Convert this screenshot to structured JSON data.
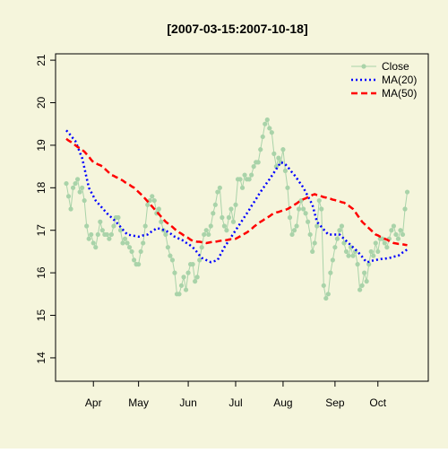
{
  "chart_data": {
    "type": "line",
    "title": "[2007-03-15:2007-10-18]",
    "categories": [
      null,
      null,
      null,
      null,
      null,
      null,
      null,
      null,
      null,
      null,
      null,
      null,
      "Apr",
      null,
      null,
      null,
      null,
      null,
      null,
      null,
      null,
      null,
      null,
      null,
      null,
      null,
      null,
      null,
      null,
      null,
      null,
      null,
      "May",
      null,
      null,
      null,
      null,
      null,
      null,
      null,
      null,
      null,
      null,
      null,
      null,
      null,
      null,
      null,
      null,
      null,
      null,
      null,
      null,
      null,
      "Jun",
      null,
      null,
      null,
      null,
      null,
      null,
      null,
      null,
      null,
      null,
      null,
      null,
      null,
      null,
      null,
      null,
      null,
      null,
      null,
      null,
      "Jul",
      null,
      null,
      null,
      null,
      null,
      null,
      null,
      null,
      null,
      null,
      null,
      null,
      null,
      null,
      null,
      null,
      null,
      null,
      null,
      null,
      "Aug",
      null,
      null,
      null,
      null,
      null,
      null,
      null,
      null,
      null,
      null,
      null,
      null,
      null,
      null,
      null,
      null,
      null,
      null,
      null,
      null,
      null,
      null,
      "Sep",
      null,
      null,
      null,
      null,
      null,
      null,
      null,
      null,
      null,
      null,
      null,
      null,
      null,
      null,
      null,
      null,
      null,
      null,
      "Oct",
      null,
      null,
      null,
      null,
      null,
      null,
      null,
      null,
      null,
      null,
      null,
      null,
      null
    ],
    "series": [
      {
        "name": "Close",
        "color": "#a9d3a9",
        "line_style": "solid",
        "markers": true,
        "values": [
          18.1,
          17.8,
          17.5,
          18.0,
          18.1,
          18.2,
          17.9,
          18.0,
          17.7,
          17.1,
          16.8,
          16.9,
          16.7,
          16.6,
          16.9,
          17.2,
          17.0,
          16.9,
          16.9,
          16.8,
          16.9,
          17.1,
          17.3,
          17.3,
          17.0,
          16.7,
          16.8,
          16.7,
          16.6,
          16.5,
          16.3,
          16.2,
          16.2,
          16.5,
          16.7,
          17.1,
          17.6,
          17.7,
          17.8,
          17.7,
          17.4,
          17.5,
          17.2,
          17.0,
          16.9,
          16.6,
          16.4,
          16.3,
          16.0,
          15.5,
          15.5,
          15.7,
          15.9,
          15.6,
          16.0,
          16.2,
          16.2,
          15.8,
          15.9,
          16.3,
          16.6,
          16.9,
          17.0,
          16.9,
          17.1,
          17.4,
          17.6,
          17.9,
          18.0,
          17.3,
          17.1,
          17.0,
          17.3,
          17.5,
          17.2,
          17.6,
          18.2,
          18.2,
          18.0,
          18.3,
          18.2,
          18.2,
          18.3,
          18.5,
          18.6,
          18.6,
          18.9,
          19.2,
          19.5,
          19.6,
          19.4,
          19.3,
          18.8,
          18.5,
          18.7,
          18.6,
          18.9,
          18.4,
          18.0,
          17.3,
          16.9,
          17.0,
          17.1,
          17.5,
          17.7,
          17.5,
          17.4,
          17.2,
          16.9,
          16.5,
          16.7,
          17.1,
          17.7,
          17.5,
          15.7,
          15.4,
          15.5,
          16.0,
          16.3,
          16.6,
          16.8,
          17.0,
          17.1,
          16.7,
          16.5,
          16.4,
          16.6,
          16.4,
          16.5,
          16.2,
          15.6,
          15.7,
          16.0,
          15.8,
          16.2,
          16.5,
          16.4,
          16.7,
          16.5,
          16.8,
          16.8,
          16.7,
          16.6,
          16.8,
          17.0,
          17.1,
          16.9,
          16.8,
          17.0,
          16.9,
          17.5,
          17.9
        ]
      },
      {
        "name": "MA(20)",
        "color": "#0000ff",
        "line_style": "dotted",
        "markers": false,
        "values": [
          19.35,
          19.29,
          19.23,
          19.16,
          19.1,
          18.97,
          18.83,
          18.7,
          18.47,
          18.23,
          18.0,
          17.9,
          17.8,
          17.7,
          17.64,
          17.58,
          17.52,
          17.46,
          17.4,
          17.35,
          17.3,
          17.25,
          17.2,
          17.14,
          17.08,
          17.02,
          16.96,
          16.9,
          16.89,
          16.88,
          16.87,
          16.86,
          16.85,
          16.86,
          16.88,
          16.89,
          16.9,
          16.94,
          16.98,
          17.01,
          17.05,
          17.04,
          17.03,
          17.01,
          17.0,
          16.96,
          16.93,
          16.89,
          16.85,
          16.83,
          16.8,
          16.78,
          16.75,
          16.71,
          16.68,
          16.64,
          16.6,
          16.54,
          16.48,
          16.41,
          16.35,
          16.33,
          16.3,
          16.28,
          16.25,
          16.27,
          16.28,
          16.3,
          16.4,
          16.5,
          16.6,
          16.68,
          16.76,
          16.84,
          16.92,
          17.0,
          17.08,
          17.16,
          17.24,
          17.32,
          17.4,
          17.48,
          17.57,
          17.65,
          17.73,
          17.82,
          17.9,
          17.98,
          18.05,
          18.13,
          18.2,
          18.28,
          18.36,
          18.44,
          18.52,
          18.6,
          18.58,
          18.55,
          18.49,
          18.43,
          18.36,
          18.3,
          18.23,
          18.15,
          18.08,
          18.0,
          17.9,
          17.8,
          17.7,
          17.6,
          17.4,
          17.2,
          17.14,
          17.08,
          17.02,
          16.96,
          16.9,
          16.9,
          16.9,
          16.9,
          16.9,
          16.9,
          16.85,
          16.8,
          16.75,
          16.7,
          16.65,
          16.6,
          16.55,
          16.5,
          16.44,
          16.38,
          16.31,
          16.25,
          16.26,
          16.28,
          16.29,
          16.3,
          16.31,
          16.32,
          16.33,
          16.33,
          16.34,
          16.35,
          16.36,
          16.38,
          16.39,
          16.4,
          16.44,
          16.48,
          16.51,
          16.55
        ]
      },
      {
        "name": "MA(50)",
        "color": "#ff0000",
        "line_style": "dashed",
        "markers": false,
        "values": [
          19.15,
          19.11,
          19.08,
          19.04,
          19.0,
          18.96,
          18.93,
          18.89,
          18.85,
          18.79,
          18.73,
          18.66,
          18.6,
          18.58,
          18.55,
          18.53,
          18.5,
          18.45,
          18.4,
          18.35,
          18.3,
          18.28,
          18.25,
          18.23,
          18.2,
          18.17,
          18.13,
          18.1,
          18.07,
          18.03,
          18.0,
          17.95,
          17.9,
          17.85,
          17.8,
          17.74,
          17.68,
          17.62,
          17.56,
          17.5,
          17.44,
          17.38,
          17.32,
          17.26,
          17.2,
          17.16,
          17.12,
          17.08,
          17.03,
          16.99,
          16.95,
          16.92,
          16.88,
          16.85,
          16.82,
          16.78,
          16.75,
          16.74,
          16.73,
          16.73,
          16.72,
          16.71,
          16.7,
          16.71,
          16.72,
          16.73,
          16.73,
          16.74,
          16.75,
          16.76,
          16.76,
          16.77,
          16.78,
          16.79,
          16.79,
          16.8,
          16.83,
          16.86,
          16.89,
          16.92,
          16.95,
          16.99,
          17.03,
          17.08,
          17.12,
          17.16,
          17.2,
          17.23,
          17.27,
          17.3,
          17.33,
          17.37,
          17.4,
          17.42,
          17.43,
          17.45,
          17.47,
          17.48,
          17.5,
          17.53,
          17.57,
          17.6,
          17.63,
          17.67,
          17.7,
          17.73,
          17.75,
          17.78,
          17.8,
          17.83,
          17.85,
          17.83,
          17.82,
          17.8,
          17.78,
          17.77,
          17.75,
          17.74,
          17.72,
          17.71,
          17.69,
          17.68,
          17.66,
          17.65,
          17.61,
          17.58,
          17.54,
          17.5,
          17.43,
          17.35,
          17.28,
          17.2,
          17.15,
          17.1,
          17.05,
          17.0,
          16.95,
          16.9,
          16.88,
          16.85,
          16.83,
          16.8,
          16.78,
          16.75,
          16.73,
          16.7,
          16.69,
          16.68,
          16.68,
          16.67,
          16.66,
          16.65
        ]
      }
    ],
    "ylim": [
      13.45,
      21.15
    ],
    "yticks": [
      14,
      15,
      16,
      17,
      18,
      19,
      20,
      21
    ],
    "legend": "topright",
    "background": "#f5f5dc"
  }
}
